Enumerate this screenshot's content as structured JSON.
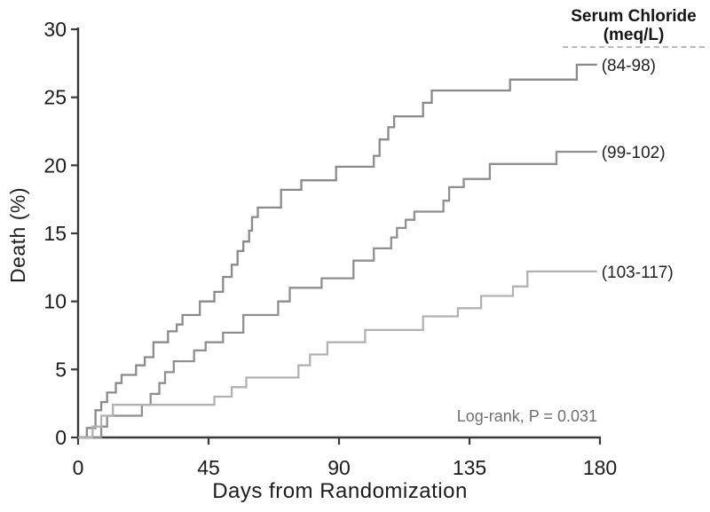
{
  "figure": {
    "ylabel": "Death (%)",
    "xlabel": "Days from Randomization",
    "legend_title_line1": "Serum Chloride",
    "legend_title_line2": "(meq/L)",
    "annotation": "Log-rank, P = 0.031"
  },
  "chart_data": {
    "type": "line",
    "subtype": "kaplan-meier-step",
    "title": "Serum Chloride (meq/L)",
    "xlabel": "Days from Randomization",
    "ylabel": "Death (%)",
    "xlim": [
      0,
      180
    ],
    "ylim": [
      0,
      30
    ],
    "x_ticks": [
      0,
      45,
      90,
      135,
      180
    ],
    "y_ticks": [
      0,
      5,
      10,
      15,
      20,
      25,
      30
    ],
    "grid": false,
    "legend_position": "top-right, labels at right end of each curve",
    "annotation": "Log-rank, P = 0.031",
    "axis_color": "#3a3a3a",
    "end_day": 179,
    "series": [
      {
        "name": "(84-98)",
        "color": "#8a8a8a",
        "final_value": 27.4,
        "steps": [
          [
            3,
            0.7
          ],
          [
            6,
            2.0
          ],
          [
            8,
            2.6
          ],
          [
            10,
            3.3
          ],
          [
            13,
            4.0
          ],
          [
            15,
            4.6
          ],
          [
            20,
            5.3
          ],
          [
            23,
            5.9
          ],
          [
            26,
            7.0
          ],
          [
            31,
            7.8
          ],
          [
            34,
            8.3
          ],
          [
            36,
            9.0
          ],
          [
            42,
            10.0
          ],
          [
            47,
            10.7
          ],
          [
            50,
            11.8
          ],
          [
            53,
            12.7
          ],
          [
            55,
            13.7
          ],
          [
            57,
            14.4
          ],
          [
            59,
            15.2
          ],
          [
            60,
            16.2
          ],
          [
            62,
            16.9
          ],
          [
            70,
            18.2
          ],
          [
            77,
            18.9
          ],
          [
            89,
            19.9
          ],
          [
            102,
            20.7
          ],
          [
            104,
            21.9
          ],
          [
            107,
            22.8
          ],
          [
            109,
            23.6
          ],
          [
            119,
            24.6
          ],
          [
            122,
            25.5
          ],
          [
            149,
            26.3
          ],
          [
            172,
            27.4
          ]
        ]
      },
      {
        "name": "(99-102)",
        "color": "#8f8f8f",
        "final_value": 21.0,
        "steps": [
          [
            8,
            0.8
          ],
          [
            10,
            1.6
          ],
          [
            22,
            2.4
          ],
          [
            25,
            3.2
          ],
          [
            28,
            4.0
          ],
          [
            30,
            4.8
          ],
          [
            33,
            5.6
          ],
          [
            40,
            6.4
          ],
          [
            44,
            7.0
          ],
          [
            50,
            7.7
          ],
          [
            57,
            9.0
          ],
          [
            69,
            10.0
          ],
          [
            73,
            11.0
          ],
          [
            84,
            11.7
          ],
          [
            95,
            13.0
          ],
          [
            102,
            13.9
          ],
          [
            108,
            14.7
          ],
          [
            110,
            15.4
          ],
          [
            113,
            16.0
          ],
          [
            116,
            16.6
          ],
          [
            126,
            17.4
          ],
          [
            128,
            18.4
          ],
          [
            133,
            19.0
          ],
          [
            142,
            20.1
          ],
          [
            165,
            21.0
          ]
        ]
      },
      {
        "name": "(103-117)",
        "color": "#b2b2b2",
        "final_value": 12.2,
        "steps": [
          [
            5,
            0.8
          ],
          [
            8,
            1.6
          ],
          [
            12,
            2.4
          ],
          [
            47,
            3.0
          ],
          [
            53,
            3.7
          ],
          [
            58,
            4.4
          ],
          [
            76,
            5.3
          ],
          [
            80,
            6.1
          ],
          [
            86,
            7.0
          ],
          [
            99,
            7.9
          ],
          [
            119,
            8.9
          ],
          [
            131,
            9.5
          ],
          [
            139,
            10.4
          ],
          [
            150,
            11.1
          ],
          [
            155,
            12.2
          ]
        ]
      }
    ]
  }
}
